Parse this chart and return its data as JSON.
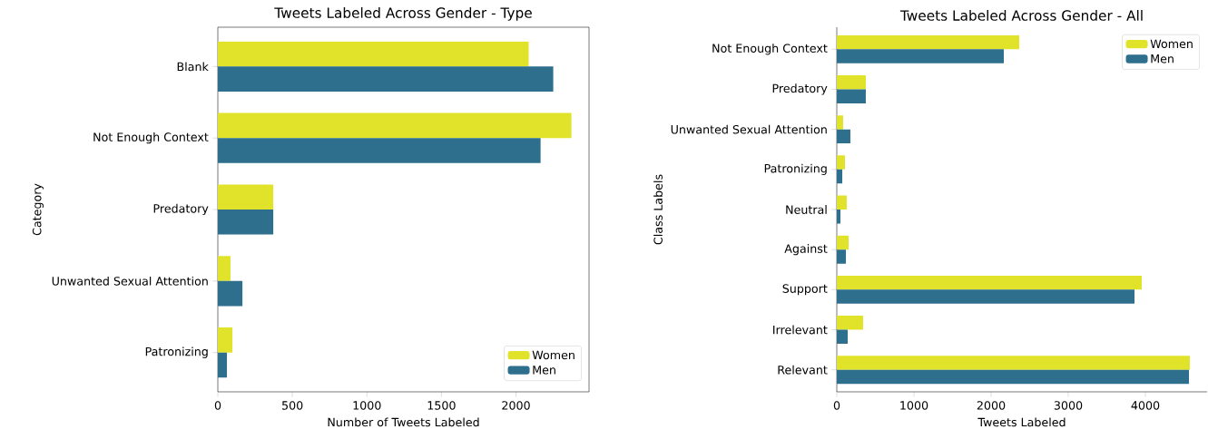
{
  "chart_data": [
    {
      "type": "bar",
      "orientation": "horizontal",
      "title": "Tweets Labeled Across Gender - Type",
      "xlabel": "Number of Tweets Labeled",
      "ylabel": "Category",
      "categories": [
        "Blank",
        "Not Enough Context",
        "Predatory",
        "Unwanted Sexual Attention",
        "Patronizing"
      ],
      "series": [
        {
          "name": "Women",
          "color": "#e1e32a",
          "values": [
            2085,
            2372,
            372,
            85,
            98
          ]
        },
        {
          "name": "Men",
          "color": "#2e6f8e",
          "values": [
            2250,
            2165,
            372,
            165,
            61
          ]
        }
      ],
      "xlim": [
        0,
        2490
      ],
      "xticks": [
        0,
        500,
        1000,
        1500,
        2000
      ],
      "legend": "bottom right",
      "grid": false
    },
    {
      "type": "bar",
      "orientation": "horizontal",
      "title": "Tweets Labeled Across Gender - All",
      "xlabel": "Tweets Labeled",
      "ylabel": "Class Labels",
      "categories": [
        "Not Enough Context",
        "Predatory",
        "Unwanted Sexual Attention",
        "Patronizing",
        "Neutral",
        "Against",
        "Support",
        "Irrelevant",
        "Relevant"
      ],
      "series": [
        {
          "name": "Women",
          "color": "#e1e32a",
          "values": [
            2365,
            376,
            82,
            106,
            129,
            153,
            3953,
            341,
            4576
          ]
        },
        {
          "name": "Men",
          "color": "#2e6f8e",
          "values": [
            2165,
            376,
            176,
            71,
            47,
            118,
            3859,
            141,
            4565
          ]
        }
      ],
      "xlim": [
        0,
        4800
      ],
      "xticks": [
        0,
        1000,
        2000,
        3000,
        4000
      ],
      "legend": "top right",
      "grid": false
    }
  ]
}
